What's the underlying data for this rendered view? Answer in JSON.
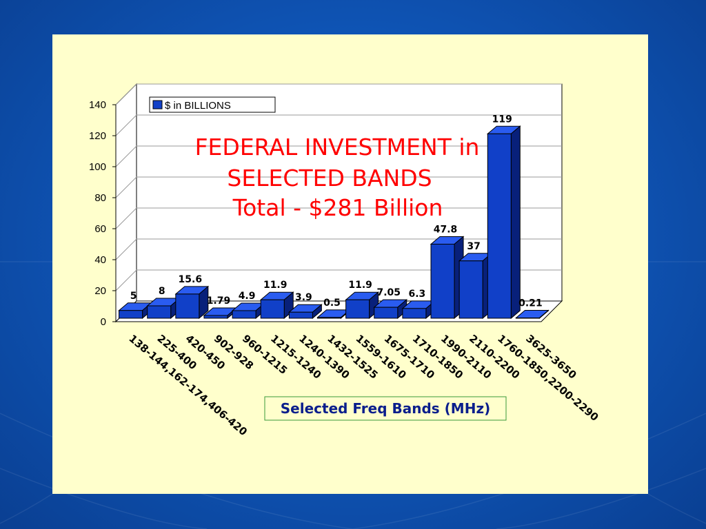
{
  "colors": {
    "background": "#0f56b8",
    "panel": "#ffffcc",
    "bar_front": "#1140c8",
    "bar_top": "#2a5cf0",
    "bar_side": "#08207a",
    "title": "#ff0000",
    "xlabel": "#0a1e8c",
    "xlabel_border": "#3a9a3a"
  },
  "chart_data": {
    "type": "bar",
    "title_lines": [
      "FEDERAL INVESTMENT in",
      "SELECTED BANDS",
      "Total - $281 Billion"
    ],
    "xlabel": "Selected Freq Bands (MHz)",
    "ylabel": "",
    "ylim": [
      0,
      140
    ],
    "yticks": [
      "0",
      "20",
      "40",
      "60",
      "80",
      "100",
      "120",
      "140"
    ],
    "grid": true,
    "legend": {
      "label": "$ in BILLIONS",
      "position": "top-left"
    },
    "categories": [
      "138-144,162-174,406-420",
      "225-400",
      "420-450",
      "902-928",
      "960-1215",
      "1215-1240",
      "1240-1390",
      "1432-1525",
      "1559-1610",
      "1675-1710",
      "1710-1850",
      "1990-2110",
      "2110-2200",
      "1760-1850,2200-2290",
      "3625-3650"
    ],
    "values": [
      5,
      8,
      15.6,
      1.79,
      4.9,
      11.9,
      3.9,
      0.5,
      11.9,
      7.05,
      6.3,
      47.8,
      37,
      119,
      0.21
    ],
    "data_labels": [
      "5",
      "8",
      "15.6",
      "1.79",
      "4.9",
      "11.9",
      "3.9",
      "0.5",
      "11.9",
      "7.05",
      "6.3",
      "47.8",
      "37",
      "119",
      "0.21"
    ]
  }
}
